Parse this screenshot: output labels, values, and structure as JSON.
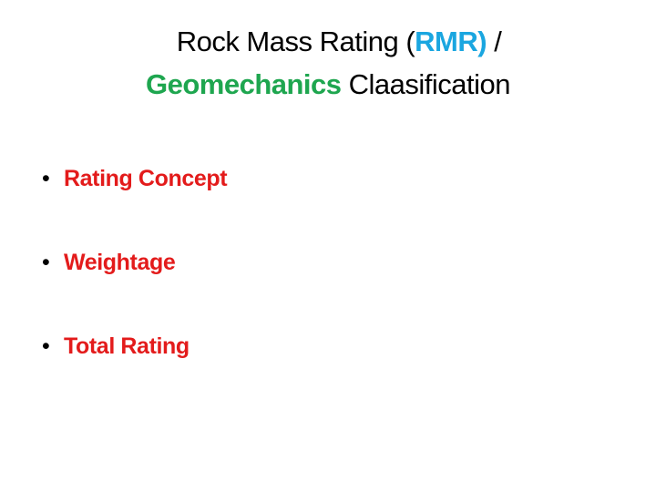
{
  "title": {
    "line1_prefix": "Rock Mass Rating (",
    "line1_highlight": "RMR)",
    "line1_suffix": " /",
    "line2_highlight": "Geomechanics",
    "line2_suffix": " Claasification"
  },
  "bullets": [
    "Rating Concept",
    "Weightage",
    "Total Rating"
  ],
  "colors": {
    "blue": "#1aa6e0",
    "green": "#1ea64f",
    "bullet_red": "#e31b1b"
  }
}
